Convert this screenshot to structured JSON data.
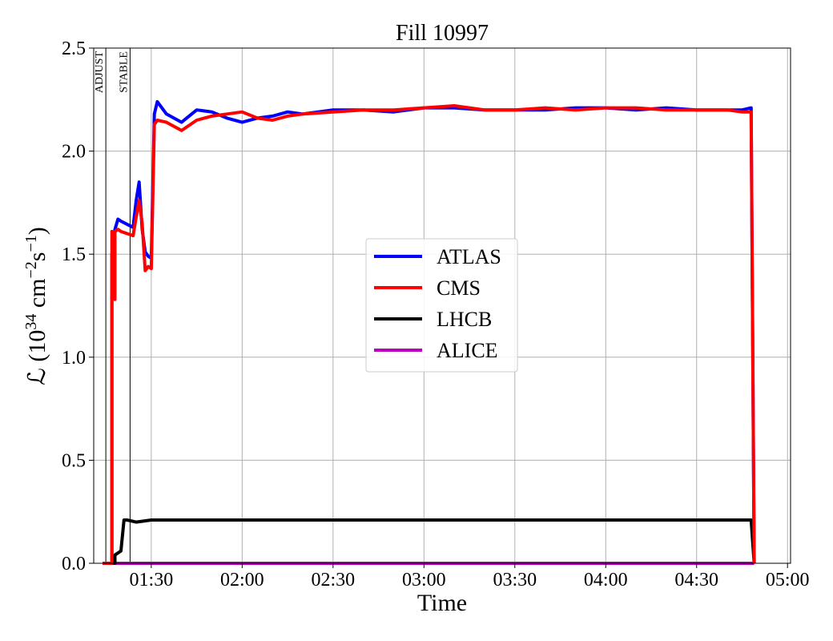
{
  "chart_data": {
    "type": "line",
    "title": "Fill 10997",
    "xlabel": "Time",
    "ylabel_prefix": "ℒ (10",
    "ylabel_sup1": "34",
    "ylabel_mid": " cm",
    "ylabel_sup2": "−2",
    "ylabel_s": "s",
    "ylabel_sup3": "−1",
    "ylabel_suffix": ")",
    "xlim": [
      "01:11",
      "05:01"
    ],
    "ylim": [
      0,
      2.5
    ],
    "grid": true,
    "legend_position": "center",
    "x_ticks": [
      "01:30",
      "02:00",
      "02:30",
      "03:00",
      "03:30",
      "04:00",
      "04:30",
      "05:00"
    ],
    "y_ticks": [
      "0.0",
      "0.5",
      "1.0",
      "1.5",
      "2.0",
      "2.5"
    ],
    "annotations": [
      {
        "label": "ADJUST",
        "time": "01:15"
      },
      {
        "label": "STABLE",
        "time": "01:23"
      }
    ],
    "series": [
      {
        "name": "ATLAS",
        "color": "#0000ff",
        "x": [
          "01:14",
          "01:17",
          "01:17",
          "01:18",
          "01:19",
          "01:20",
          "01:24",
          "01:25",
          "01:26",
          "01:27",
          "01:28",
          "01:29",
          "01:30",
          "01:31",
          "01:32",
          "01:35",
          "01:40",
          "01:45",
          "01:50",
          "01:55",
          "02:00",
          "02:05",
          "02:10",
          "02:15",
          "02:20",
          "02:30",
          "02:40",
          "02:50",
          "03:00",
          "03:10",
          "03:20",
          "03:30",
          "03:40",
          "03:50",
          "04:00",
          "04:10",
          "04:20",
          "04:30",
          "04:40",
          "04:45",
          "04:48",
          "04:49"
        ],
        "y": [
          0,
          0,
          1.5,
          1.62,
          1.67,
          1.66,
          1.63,
          1.76,
          1.85,
          1.62,
          1.51,
          1.49,
          1.48,
          2.18,
          2.24,
          2.18,
          2.14,
          2.2,
          2.19,
          2.16,
          2.14,
          2.16,
          2.17,
          2.19,
          2.18,
          2.2,
          2.2,
          2.19,
          2.21,
          2.21,
          2.2,
          2.2,
          2.2,
          2.21,
          2.21,
          2.2,
          2.21,
          2.2,
          2.2,
          2.2,
          2.21,
          0
        ]
      },
      {
        "name": "CMS",
        "color": "#ff0000",
        "x": [
          "01:14",
          "01:17",
          "01:17",
          "01:18",
          "01:18",
          "01:19",
          "01:20",
          "01:24",
          "01:25",
          "01:26",
          "01:27",
          "01:28",
          "01:29",
          "01:30",
          "01:31",
          "01:32",
          "01:35",
          "01:40",
          "01:45",
          "01:50",
          "01:55",
          "02:00",
          "02:05",
          "02:10",
          "02:15",
          "02:20",
          "02:30",
          "02:40",
          "02:50",
          "03:00",
          "03:10",
          "03:20",
          "03:30",
          "03:40",
          "03:50",
          "04:00",
          "04:10",
          "04:20",
          "04:30",
          "04:40",
          "04:45",
          "04:48",
          "04:49"
        ],
        "y": [
          0,
          0,
          1.61,
          1.28,
          1.61,
          1.62,
          1.61,
          1.59,
          1.68,
          1.76,
          1.65,
          1.42,
          1.44,
          1.43,
          2.13,
          2.15,
          2.14,
          2.1,
          2.15,
          2.17,
          2.18,
          2.19,
          2.16,
          2.15,
          2.17,
          2.18,
          2.19,
          2.2,
          2.2,
          2.21,
          2.22,
          2.2,
          2.2,
          2.21,
          2.2,
          2.21,
          2.21,
          2.2,
          2.2,
          2.2,
          2.19,
          2.19,
          0
        ]
      },
      {
        "name": "LHCB",
        "color": "#000000",
        "x": [
          "01:14",
          "01:18",
          "01:18",
          "01:19",
          "01:20",
          "01:21",
          "01:22",
          "01:25",
          "01:30",
          "01:40",
          "01:50",
          "02:00",
          "02:20",
          "02:40",
          "03:00",
          "03:20",
          "03:40",
          "04:00",
          "04:20",
          "04:40",
          "04:48",
          "04:49"
        ],
        "y": [
          0,
          0,
          0.04,
          0.05,
          0.06,
          0.21,
          0.21,
          0.2,
          0.21,
          0.21,
          0.21,
          0.21,
          0.21,
          0.21,
          0.21,
          0.21,
          0.21,
          0.21,
          0.21,
          0.21,
          0.21,
          0
        ]
      },
      {
        "name": "ALICE",
        "color": "#bf00bf",
        "x": [
          "01:14",
          "04:49"
        ],
        "y": [
          0,
          0
        ]
      }
    ]
  }
}
